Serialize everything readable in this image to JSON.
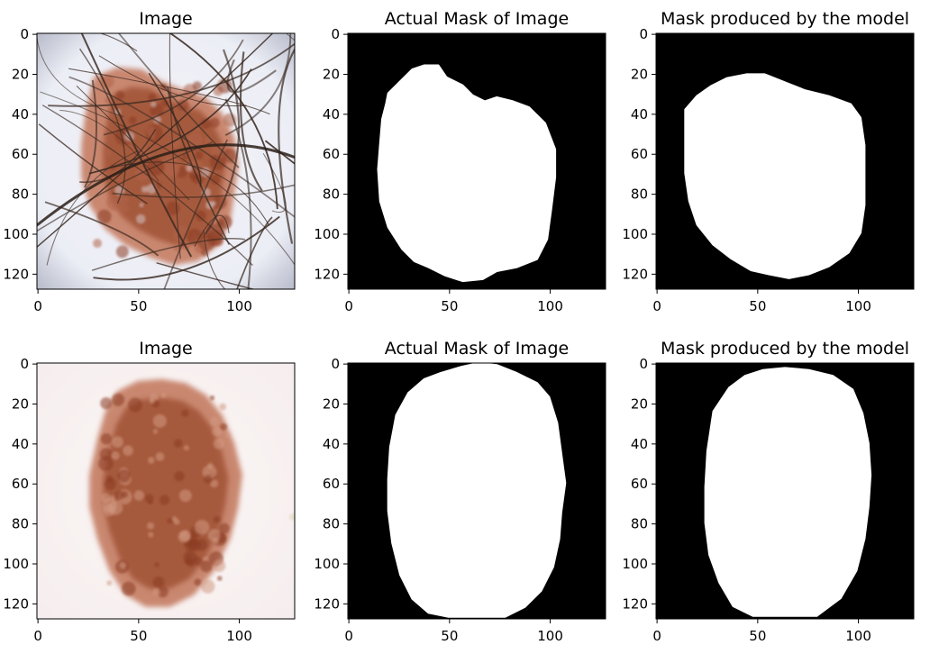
{
  "figure": {
    "rows": [
      {
        "panels": [
          {
            "title": "Image",
            "kind": "photo",
            "variant": "lesion-hair"
          },
          {
            "title": "Actual Mask of Image",
            "kind": "mask",
            "variant": "ground-truth-1"
          },
          {
            "title": "Mask produced by the model",
            "kind": "mask",
            "variant": "prediction-1"
          }
        ]
      },
      {
        "panels": [
          {
            "title": "Image",
            "kind": "photo",
            "variant": "lesion-clear"
          },
          {
            "title": "Actual Mask of Image",
            "kind": "mask",
            "variant": "ground-truth-2"
          },
          {
            "title": "Mask produced by the model",
            "kind": "mask",
            "variant": "prediction-2"
          }
        ]
      }
    ],
    "x_ticks": [
      "0",
      "50",
      "100"
    ],
    "y_ticks": [
      "0",
      "20",
      "40",
      "60",
      "80",
      "100",
      "120"
    ],
    "colors": {
      "mask_background": "#000000",
      "mask_foreground": "#ffffff",
      "lesion_dark": "#8a3b22",
      "lesion_mid": "#a65a3e",
      "lesion_light": "#c98770",
      "skin_1": "#eceef6",
      "skin_2": "#f6eeee",
      "hair": "#3a2a22"
    }
  }
}
